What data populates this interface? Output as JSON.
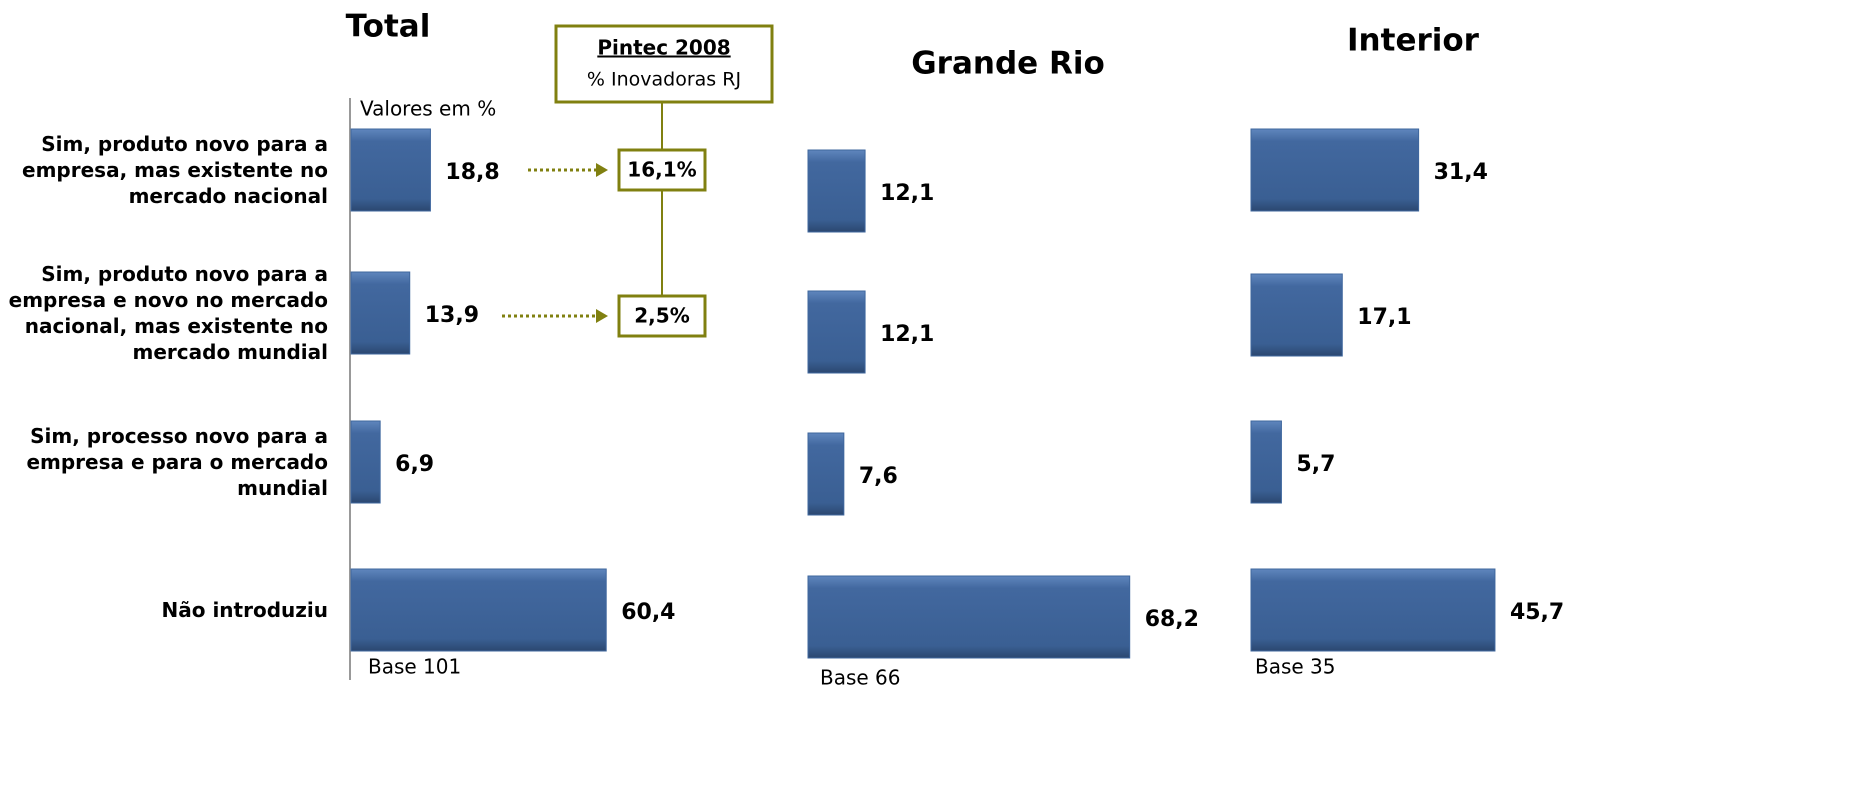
{
  "chart_data": [
    {
      "type": "bar",
      "orientation": "horizontal",
      "title": "Total",
      "categories": [
        "Sim, produto novo para a empresa, mas existente no mercado nacional",
        "Sim, produto novo para a empresa e novo no mercado nacional, mas existente no mercado mundial",
        "Sim, processo novo para a empresa e para o mercado mundial",
        "Não introduziu"
      ],
      "values": [
        18.8,
        13.9,
        6.9,
        60.4
      ],
      "value_labels": [
        "18,8",
        "13,9",
        "6,9",
        "60,4"
      ],
      "color": "#3f679e",
      "xlim": [
        0,
        71
      ],
      "unit_label": "Valores em %",
      "note": "Base 101"
    },
    {
      "type": "bar",
      "orientation": "horizontal",
      "title": "Grande Rio",
      "values": [
        12.1,
        12.1,
        7.6,
        68.2
      ],
      "value_labels": [
        "12,1",
        "12,1",
        "7,6",
        "68,2"
      ],
      "color": "#3f679e",
      "xlim": [
        0,
        63.6
      ],
      "note": "Base 66"
    },
    {
      "type": "bar",
      "orientation": "horizontal",
      "title": "Interior",
      "values": [
        31.4,
        17.1,
        5.7,
        45.7
      ],
      "value_labels": [
        "31,4",
        "17,1",
        "5,7",
        "45,7"
      ],
      "color": "#3f679e",
      "xlim": [
        0,
        56.2
      ],
      "note": "Base 35"
    }
  ],
  "annotation": {
    "title": "Pintec 2008",
    "subtitle": "% Inovadoras RJ",
    "values": [
      16.1,
      2.5
    ],
    "value_labels": [
      "16,1%",
      "2,5%"
    ],
    "color": "#808010"
  }
}
